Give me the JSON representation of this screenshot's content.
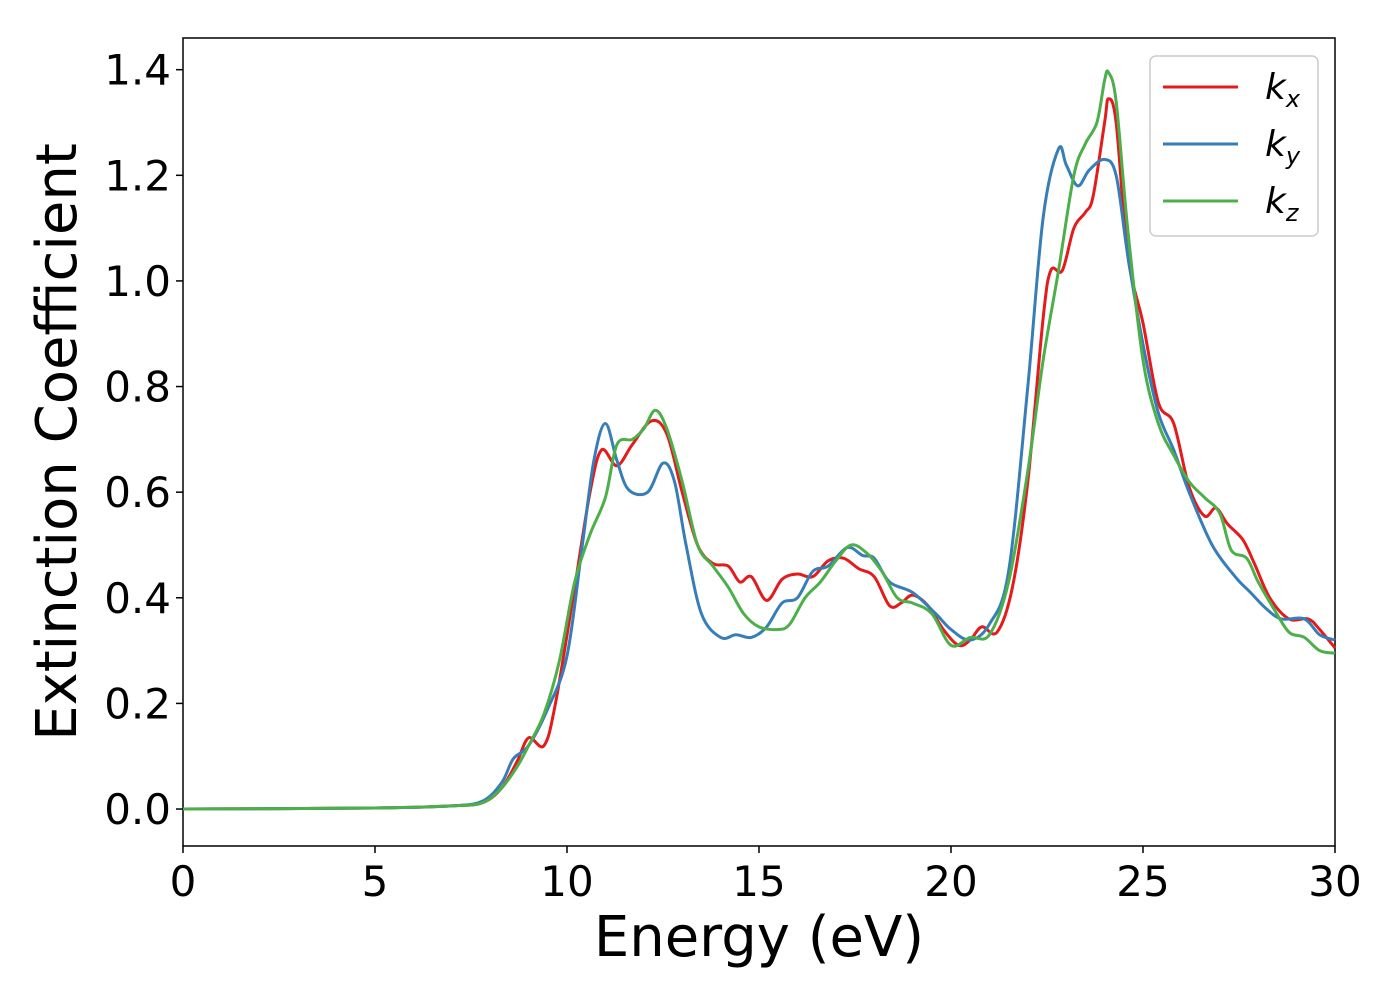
{
  "chart_data": {
    "type": "line",
    "title": "",
    "xlabel": "Energy (eV)",
    "ylabel": "Extinction Coefficient",
    "xlim": [
      0,
      30
    ],
    "ylim": [
      -0.07,
      1.46
    ],
    "x_ticks": [
      "0",
      "5",
      "10",
      "15",
      "20",
      "25",
      "30"
    ],
    "y_ticks": [
      "0.0",
      "0.2",
      "0.4",
      "0.6",
      "0.8",
      "1.0",
      "1.2",
      "1.4"
    ],
    "grid": false,
    "legend_position": "top-right",
    "series": [
      {
        "name": "k",
        "subscript": "x",
        "color": "#e41a1c",
        "points": [
          [
            0,
            0
          ],
          [
            5,
            0.002
          ],
          [
            7,
            0.006
          ],
          [
            7.8,
            0.012
          ],
          [
            8.3,
            0.04
          ],
          [
            8.7,
            0.09
          ],
          [
            9.0,
            0.135
          ],
          [
            9.4,
            0.12
          ],
          [
            9.7,
            0.2
          ],
          [
            10.2,
            0.42
          ],
          [
            10.6,
            0.6
          ],
          [
            10.9,
            0.68
          ],
          [
            11.3,
            0.65
          ],
          [
            11.7,
            0.69
          ],
          [
            12.2,
            0.735
          ],
          [
            12.6,
            0.71
          ],
          [
            13.0,
            0.6
          ],
          [
            13.4,
            0.5
          ],
          [
            13.8,
            0.465
          ],
          [
            14.2,
            0.46
          ],
          [
            14.5,
            0.43
          ],
          [
            14.8,
            0.44
          ],
          [
            15.2,
            0.395
          ],
          [
            15.6,
            0.435
          ],
          [
            16.0,
            0.445
          ],
          [
            16.4,
            0.44
          ],
          [
            16.8,
            0.47
          ],
          [
            17.2,
            0.475
          ],
          [
            17.6,
            0.455
          ],
          [
            18.0,
            0.44
          ],
          [
            18.4,
            0.385
          ],
          [
            18.7,
            0.39
          ],
          [
            19.0,
            0.405
          ],
          [
            19.4,
            0.385
          ],
          [
            19.8,
            0.34
          ],
          [
            20.2,
            0.31
          ],
          [
            20.5,
            0.32
          ],
          [
            20.8,
            0.345
          ],
          [
            21.2,
            0.335
          ],
          [
            21.6,
            0.42
          ],
          [
            22.0,
            0.62
          ],
          [
            22.4,
            0.93
          ],
          [
            22.6,
            1.02
          ],
          [
            22.9,
            1.02
          ],
          [
            23.2,
            1.1
          ],
          [
            23.5,
            1.13
          ],
          [
            23.7,
            1.16
          ],
          [
            24.0,
            1.3
          ],
          [
            24.1,
            1.345
          ],
          [
            24.3,
            1.3
          ],
          [
            24.6,
            1.05
          ],
          [
            25.0,
            0.92
          ],
          [
            25.4,
            0.77
          ],
          [
            25.8,
            0.73
          ],
          [
            26.2,
            0.61
          ],
          [
            26.6,
            0.555
          ],
          [
            26.9,
            0.57
          ],
          [
            27.2,
            0.54
          ],
          [
            27.6,
            0.51
          ],
          [
            27.9,
            0.465
          ],
          [
            28.3,
            0.4
          ],
          [
            28.8,
            0.36
          ],
          [
            29.3,
            0.36
          ],
          [
            29.6,
            0.34
          ],
          [
            30.0,
            0.305
          ]
        ]
      },
      {
        "name": "k",
        "subscript": "y",
        "color": "#377eb8",
        "points": [
          [
            0,
            0
          ],
          [
            5,
            0.002
          ],
          [
            7,
            0.006
          ],
          [
            7.8,
            0.015
          ],
          [
            8.3,
            0.05
          ],
          [
            8.6,
            0.095
          ],
          [
            9.0,
            0.12
          ],
          [
            9.5,
            0.19
          ],
          [
            10.0,
            0.29
          ],
          [
            10.4,
            0.5
          ],
          [
            10.7,
            0.66
          ],
          [
            11.0,
            0.73
          ],
          [
            11.3,
            0.66
          ],
          [
            11.6,
            0.605
          ],
          [
            12.1,
            0.6
          ],
          [
            12.5,
            0.655
          ],
          [
            12.8,
            0.62
          ],
          [
            13.1,
            0.5
          ],
          [
            13.5,
            0.37
          ],
          [
            14.0,
            0.325
          ],
          [
            14.4,
            0.33
          ],
          [
            14.8,
            0.325
          ],
          [
            15.2,
            0.345
          ],
          [
            15.6,
            0.39
          ],
          [
            16.0,
            0.4
          ],
          [
            16.4,
            0.45
          ],
          [
            16.8,
            0.46
          ],
          [
            17.3,
            0.495
          ],
          [
            17.7,
            0.48
          ],
          [
            18.0,
            0.475
          ],
          [
            18.4,
            0.43
          ],
          [
            19.0,
            0.41
          ],
          [
            19.6,
            0.37
          ],
          [
            20.0,
            0.34
          ],
          [
            20.5,
            0.32
          ],
          [
            21.0,
            0.35
          ],
          [
            21.5,
            0.45
          ],
          [
            22.0,
            0.8
          ],
          [
            22.4,
            1.12
          ],
          [
            22.8,
            1.25
          ],
          [
            23.0,
            1.22
          ],
          [
            23.3,
            1.18
          ],
          [
            23.6,
            1.21
          ],
          [
            24.0,
            1.23
          ],
          [
            24.3,
            1.2
          ],
          [
            24.6,
            1.05
          ],
          [
            25.0,
            0.88
          ],
          [
            25.4,
            0.75
          ],
          [
            25.8,
            0.68
          ],
          [
            26.2,
            0.6
          ],
          [
            26.8,
            0.5
          ],
          [
            27.4,
            0.44
          ],
          [
            27.8,
            0.41
          ],
          [
            28.2,
            0.38
          ],
          [
            28.6,
            0.36
          ],
          [
            29.2,
            0.36
          ],
          [
            29.6,
            0.33
          ],
          [
            30.0,
            0.32
          ]
        ]
      },
      {
        "name": "k",
        "subscript": "z",
        "color": "#4daf4a",
        "points": [
          [
            0,
            0
          ],
          [
            5,
            0.002
          ],
          [
            7,
            0.006
          ],
          [
            7.8,
            0.012
          ],
          [
            8.3,
            0.04
          ],
          [
            8.7,
            0.08
          ],
          [
            9.0,
            0.12
          ],
          [
            9.4,
            0.18
          ],
          [
            9.8,
            0.28
          ],
          [
            10.2,
            0.43
          ],
          [
            10.6,
            0.52
          ],
          [
            11.0,
            0.59
          ],
          [
            11.3,
            0.69
          ],
          [
            11.7,
            0.7
          ],
          [
            12.0,
            0.72
          ],
          [
            12.3,
            0.755
          ],
          [
            12.6,
            0.72
          ],
          [
            13.0,
            0.62
          ],
          [
            13.4,
            0.5
          ],
          [
            13.8,
            0.46
          ],
          [
            14.2,
            0.42
          ],
          [
            14.6,
            0.37
          ],
          [
            15.0,
            0.345
          ],
          [
            15.5,
            0.34
          ],
          [
            15.8,
            0.35
          ],
          [
            16.2,
            0.4
          ],
          [
            16.6,
            0.43
          ],
          [
            17.0,
            0.47
          ],
          [
            17.4,
            0.5
          ],
          [
            17.8,
            0.485
          ],
          [
            18.2,
            0.45
          ],
          [
            18.6,
            0.4
          ],
          [
            19.0,
            0.39
          ],
          [
            19.5,
            0.37
          ],
          [
            20.0,
            0.31
          ],
          [
            20.5,
            0.325
          ],
          [
            21.0,
            0.33
          ],
          [
            21.5,
            0.43
          ],
          [
            22.0,
            0.64
          ],
          [
            22.4,
            0.85
          ],
          [
            22.8,
            1.02
          ],
          [
            23.2,
            1.2
          ],
          [
            23.5,
            1.26
          ],
          [
            23.8,
            1.3
          ],
          [
            24.0,
            1.38
          ],
          [
            24.1,
            1.395
          ],
          [
            24.3,
            1.34
          ],
          [
            24.6,
            1.1
          ],
          [
            25.0,
            0.85
          ],
          [
            25.4,
            0.73
          ],
          [
            25.8,
            0.67
          ],
          [
            26.2,
            0.62
          ],
          [
            26.6,
            0.59
          ],
          [
            27.0,
            0.56
          ],
          [
            27.3,
            0.49
          ],
          [
            27.7,
            0.475
          ],
          [
            28.0,
            0.43
          ],
          [
            28.4,
            0.38
          ],
          [
            28.8,
            0.335
          ],
          [
            29.2,
            0.325
          ],
          [
            29.6,
            0.3
          ],
          [
            30.0,
            0.295
          ]
        ]
      }
    ]
  }
}
